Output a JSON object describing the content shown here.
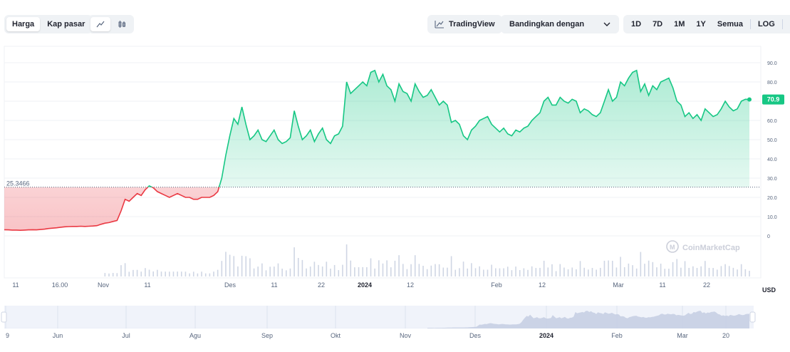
{
  "toolbar": {
    "price_tab": "Harga",
    "market_cap_tab": "Kap pasar",
    "line_icon": "line-chart-icon",
    "candle_icon": "candlestick-icon",
    "tradingview_label": "TradingView",
    "compare_label": "Bandingkan dengan",
    "ranges": [
      "1D",
      "7D",
      "1M",
      "1Y",
      "Semua"
    ],
    "log_label": "LOG",
    "download_icon": "download-icon"
  },
  "colors": {
    "up": "#16c784",
    "down": "#ea3943",
    "badge": "#16c784"
  },
  "watermark": "CoinMarketCap",
  "currency_label": "USD",
  "chart_data": {
    "type": "area",
    "baseline_value": 25.3466,
    "baseline_label": "25.3466",
    "last_price_label": "70.9",
    "y_ticks": [
      "90.0",
      "80.0",
      "70.0",
      "60.0",
      "50.0",
      "40.0",
      "30.0",
      "20.0",
      "10.0",
      "0"
    ],
    "ylim": [
      0,
      90
    ],
    "x_ticks": [
      "11",
      "16.00",
      "Nov",
      "11",
      "Des",
      "11",
      "22",
      "2024",
      "12",
      "Feb",
      "12",
      "Mar",
      "11",
      "22"
    ],
    "navigator_ticks": [
      "9",
      "Jun",
      "Jul",
      "Agu",
      "Sep",
      "Okt",
      "Nov",
      "Des",
      "2024",
      "Feb",
      "Mar",
      "20"
    ],
    "series": [
      {
        "values": [
          3.2,
          3.1,
          3.0,
          3.0,
          2.9,
          3.0,
          3.1,
          3.2,
          3.1,
          3.3,
          3.5,
          3.8,
          4.0,
          4.2,
          4.5,
          4.7,
          4.8,
          4.9,
          4.9,
          5.0,
          4.9,
          5.0,
          5.1,
          5.3,
          6.0,
          6.6,
          6.9,
          7.5,
          8.0,
          13,
          19,
          18,
          20,
          22,
          21,
          24,
          26,
          25,
          23,
          22,
          21,
          20,
          21,
          22,
          21,
          20,
          20,
          19,
          19,
          20,
          20,
          20,
          21,
          23,
          30,
          42,
          52,
          61,
          58,
          67,
          58,
          50,
          52,
          55,
          50,
          49,
          52,
          55,
          50,
          48,
          49,
          51,
          65,
          57,
          50,
          52,
          55,
          49,
          53,
          56,
          50,
          48,
          52,
          53,
          57,
          80,
          74,
          76,
          78,
          80,
          78,
          85,
          86,
          80,
          84,
          78,
          76,
          70,
          79,
          75,
          74,
          70,
          79,
          75,
          72,
          73,
          76,
          72,
          68,
          70,
          68,
          59,
          60,
          58,
          52,
          50,
          55,
          57,
          60,
          61,
          62,
          58,
          56,
          54,
          56,
          53,
          52,
          55,
          54,
          56,
          57,
          60,
          62,
          64,
          70,
          72,
          68,
          68,
          72,
          70,
          69,
          71,
          70,
          64,
          66,
          65,
          63,
          62,
          64,
          70,
          76,
          70,
          72,
          80,
          78,
          82,
          85,
          86,
          75,
          79,
          73,
          78,
          76,
          80,
          81,
          82,
          77,
          70,
          68,
          62,
          64,
          61,
          63,
          60,
          66,
          64,
          62,
          63,
          66,
          70,
          67,
          65,
          66,
          70,
          71,
          70.9
        ]
      }
    ]
  }
}
